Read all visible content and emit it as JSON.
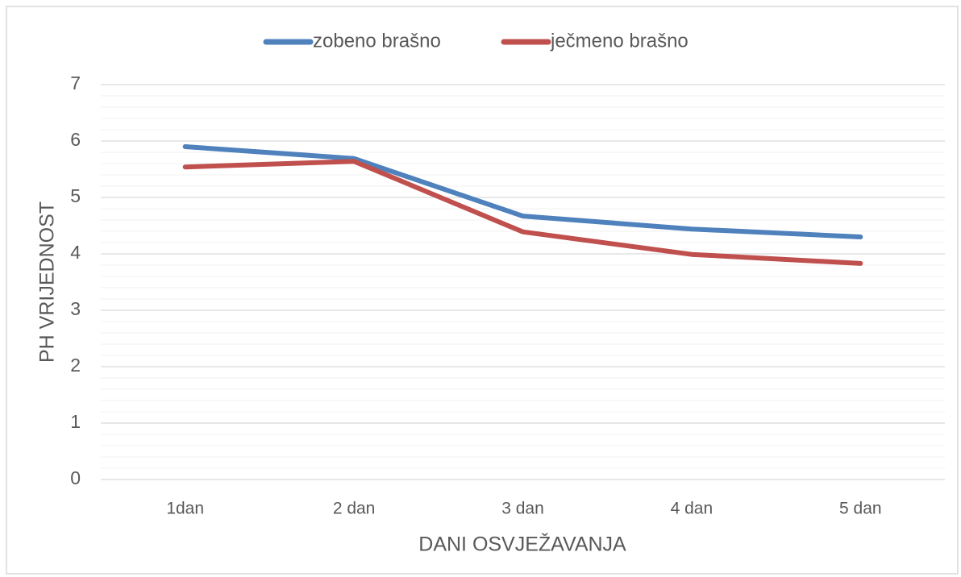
{
  "chart_data": {
    "type": "line",
    "categories": [
      "1dan",
      "2 dan",
      "3 dan",
      "4 dan",
      "5 dan"
    ],
    "series": [
      {
        "name": "zobeno brašno",
        "color": "#4f81bd",
        "values": [
          5.9,
          5.69,
          4.67,
          4.44,
          4.3
        ]
      },
      {
        "name": "ječmeno brašno",
        "color": "#c0504d",
        "values": [
          5.54,
          5.64,
          4.39,
          3.99,
          3.83
        ]
      }
    ],
    "x_label": "DANI OSVJEŽAVANJA",
    "y_label": "PH VRIJEDNOST",
    "ylim": [
      0,
      7
    ],
    "yticks": [
      0,
      1,
      2,
      3,
      4,
      5,
      6,
      7
    ],
    "grid": true,
    "minor_grid": true,
    "legend": "top"
  }
}
